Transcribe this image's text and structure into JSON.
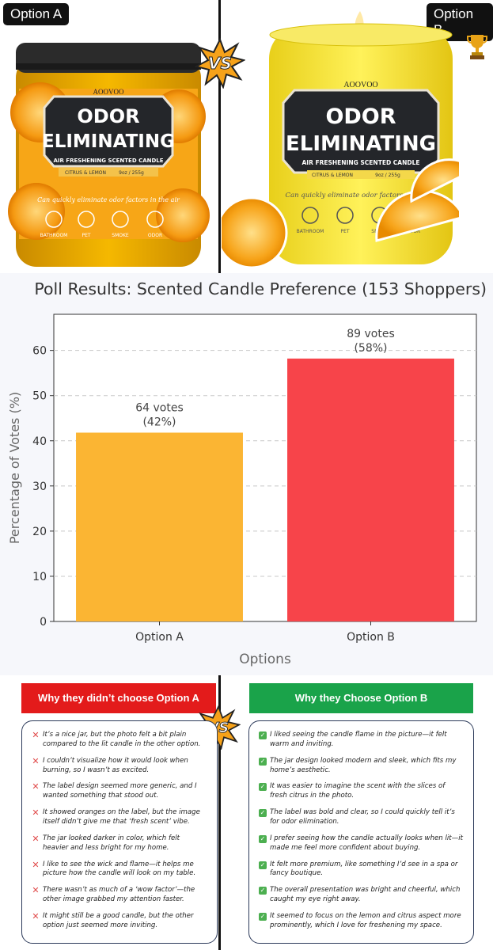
{
  "top": {
    "option_a_label": "Option A",
    "option_b_label": "Option B",
    "vs_text": "VS",
    "product": {
      "brand": "AOOVOO",
      "name_line1": "ODOR",
      "name_line2": "ELIMINATING",
      "subtitle": "AIR FRESHENING SCENTED CANDLE",
      "scent": "CITRUS & LEMON",
      "weight": "9oz / 255g",
      "tagline": "Can quickly eliminate odor factors in the air",
      "icons": [
        "BATHROOM",
        "PET",
        "SMOKE",
        "ODOR"
      ]
    }
  },
  "chart_data": {
    "type": "bar",
    "title": "Poll Results: Scented Candle Preference (153 Shoppers)",
    "xlabel": "Options",
    "ylabel": "Percentage of Votes (%)",
    "categories": [
      "Option A",
      "Option B"
    ],
    "values": [
      41.8,
      58.2
    ],
    "bar_labels": [
      [
        "64 votes",
        "(42%)"
      ],
      [
        "89 votes",
        "(58%)"
      ]
    ],
    "ylim": [
      0,
      68
    ],
    "yticks": [
      0,
      10,
      20,
      30,
      40,
      50,
      60
    ],
    "grid": true,
    "colors": [
      "#fbb533",
      "#f7444a"
    ]
  },
  "bottom": {
    "left": {
      "header": "Why they didn’t choose Option A",
      "color": "#e31b1b",
      "items": [
        "It’s a nice jar, but the photo felt a bit plain compared to the lit candle in the other option.",
        "I couldn’t visualize how it would look when burning, so I wasn’t as excited.",
        "The label design seemed more generic, and I wanted something that stood out.",
        "It showed oranges on the label, but the image itself didn’t give me that ‘fresh scent’ vibe.",
        "The jar looked darker in color, which felt heavier and less bright for my home.",
        "I like to see the wick and flame—it helps me picture how the candle will look on my table.",
        "There wasn’t as much of a ‘wow factor’—the other image grabbed my attention faster.",
        "It might still be a good candle, but the other option just seemed more inviting."
      ]
    },
    "right": {
      "header": "Why they Choose Option B",
      "color": "#1aa34a",
      "items": [
        "I liked seeing the candle flame in the picture—it felt warm and inviting.",
        "The jar design looked modern and sleek, which fits my home’s aesthetic.",
        "It was easier to imagine the scent with the slices of fresh citrus in the photo.",
        "The label was bold and clear, so I could quickly tell it’s for odor elimination.",
        "I prefer seeing how the candle actually looks when lit—it made me feel more confident about buying.",
        "It felt more premium, like something I’d see in a spa or fancy boutique.",
        "The overall presentation was bright and cheerful, which caught my eye right away.",
        "It seemed to focus on the lemon and citrus aspect more prominently, which I love for freshening my space."
      ]
    }
  }
}
